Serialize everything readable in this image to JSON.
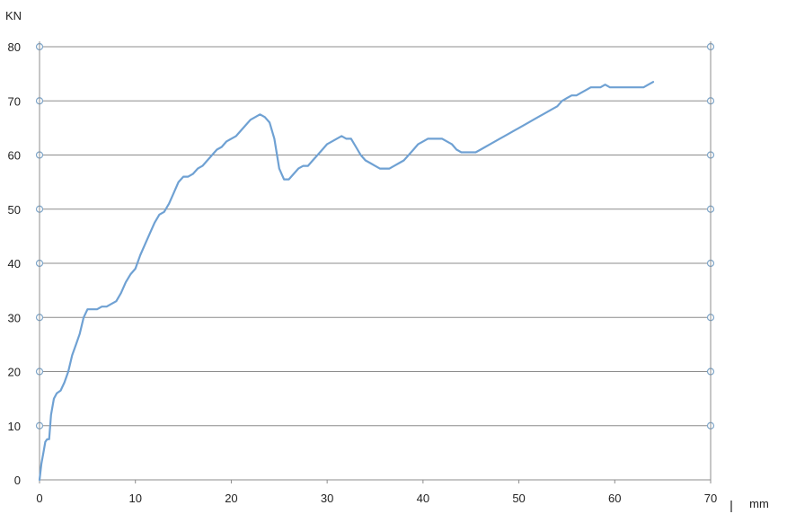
{
  "chart_data": {
    "type": "line",
    "title": "",
    "xlabel": "mm",
    "ylabel": "KN",
    "xlim": [
      0,
      70
    ],
    "ylim": [
      0,
      80
    ],
    "x_ticks": [
      "0",
      "10",
      "20",
      "30",
      "40",
      "50",
      "60",
      "70"
    ],
    "y_ticks": [
      "0",
      "10",
      "20",
      "30",
      "40",
      "50",
      "60",
      "70",
      "80"
    ],
    "grid": "horizontal",
    "legend": "none",
    "colors": {
      "series": "#6fa1d3",
      "grid": "#8c8c8c",
      "marker": "#7fa6c9"
    },
    "series": [
      {
        "x": [
          0,
          0.2,
          0.4,
          0.6,
          0.8,
          1.0,
          1.2,
          1.5,
          1.8,
          2.2,
          2.6,
          3.0,
          3.4,
          3.8,
          4.2,
          4.6,
          5.0,
          5.5,
          6.0,
          6.5,
          7.0,
          7.5,
          8.0,
          8.5,
          9.0,
          9.5,
          10.0,
          10.5,
          11.0,
          11.5,
          12.0,
          12.5,
          13.0,
          13.5,
          14.0,
          14.5,
          15.0,
          15.5,
          16.0,
          16.5,
          17.0,
          17.5,
          18.0,
          18.5,
          19.0,
          19.5,
          20.0,
          20.5,
          21.0,
          21.5,
          22.0,
          22.5,
          23.0,
          23.5,
          24.0,
          24.5,
          25.0,
          25.5,
          26.0,
          26.5,
          27.0,
          27.5,
          28.0,
          28.5,
          29.0,
          29.5,
          30.0,
          30.5,
          31.0,
          31.5,
          32.0,
          32.5,
          33.0,
          33.5,
          34.0,
          34.5,
          35.0,
          35.5,
          36.0,
          36.5,
          37.0,
          37.5,
          38.0,
          38.5,
          39.0,
          39.5,
          40.0,
          40.5,
          41.0,
          41.5,
          42.0,
          42.5,
          43.0,
          43.5,
          44.0,
          44.5,
          45.0,
          45.5,
          46.0,
          46.5,
          47.0,
          47.5,
          48.0,
          48.5,
          49.0,
          49.5,
          50.0,
          50.5,
          51.0,
          51.5,
          52.0,
          52.5,
          53.0,
          53.5,
          54.0,
          54.5,
          55.0,
          55.5,
          56.0,
          56.5,
          57.0,
          57.5,
          58.0,
          58.5,
          59.0,
          59.5,
          60.0,
          60.5,
          61.0,
          61.5,
          62.0,
          62.5,
          63.0,
          63.5,
          64.0
        ],
        "y": [
          0,
          3,
          5,
          7,
          7.5,
          7.5,
          12,
          15,
          16,
          16.5,
          18,
          20,
          23,
          25,
          27,
          30,
          31.5,
          31.5,
          31.5,
          32,
          32,
          32.5,
          33,
          34.5,
          36.5,
          38,
          39,
          41.5,
          43.5,
          45.5,
          47.5,
          49,
          49.5,
          51,
          53,
          55,
          56,
          56,
          56.5,
          57.5,
          58,
          59,
          60,
          61,
          61.5,
          62.5,
          63,
          63.5,
          64.5,
          65.5,
          66.5,
          67,
          67.5,
          67,
          66,
          63,
          57.5,
          55.5,
          55.5,
          56.5,
          57.5,
          58,
          58,
          59,
          60,
          61,
          62,
          62.5,
          63,
          63.5,
          63,
          63,
          61.5,
          60,
          59,
          58.5,
          58,
          57.5,
          57.5,
          57.5,
          58,
          58.5,
          59,
          60,
          61,
          62,
          62.5,
          63,
          63,
          63,
          63,
          62.5,
          62,
          61,
          60.5,
          60.5,
          60.5,
          60.5,
          61,
          61.5,
          62,
          62.5,
          63,
          63.5,
          64,
          64.5,
          65,
          65.5,
          66,
          66.5,
          67,
          67.5,
          68,
          68.5,
          69,
          70,
          70.5,
          71,
          71,
          71.5,
          72,
          72.5,
          72.5,
          72.5,
          73,
          72.5,
          72.5,
          72.5,
          72.5,
          72.5,
          72.5,
          72.5,
          72.5,
          73,
          73.5
        ]
      }
    ]
  }
}
